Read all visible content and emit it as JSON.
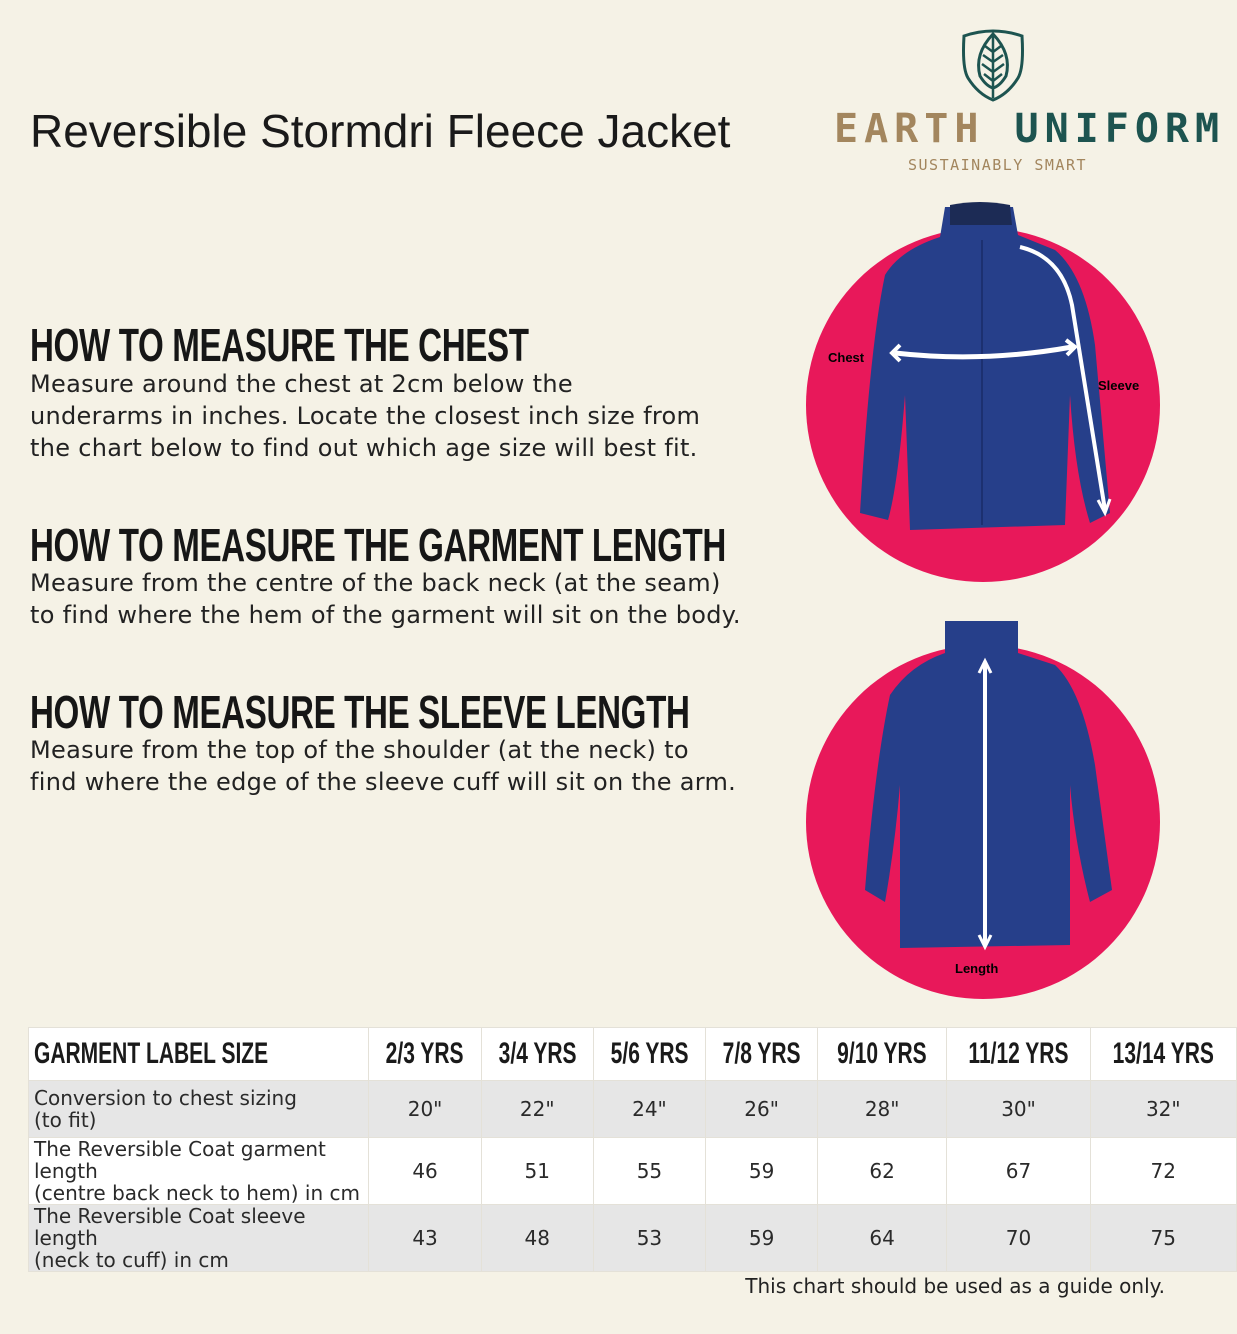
{
  "title": "Reversible Stormdri Fleece Jacket",
  "logo": {
    "word1": "EARTH",
    "word2": "UNIFORM",
    "tagline": "SUSTAINABLY SMART",
    "icon": "leaf-shield-icon",
    "colors": {
      "gold": "#a3865e",
      "teal": "#1d5450"
    }
  },
  "sections": [
    {
      "heading": "HOW TO MEASURE THE CHEST",
      "lines": [
        "Measure around the chest at 2cm below the",
        "underarms in inches. Locate the closest inch size from",
        "the chart below to find out which age size will best fit."
      ]
    },
    {
      "heading": "HOW TO MEASURE THE GARMENT LENGTH",
      "lines": [
        "Measure from the centre of the back neck (at the seam)",
        "to find where the hem of the garment will sit on the body."
      ]
    },
    {
      "heading": "HOW TO MEASURE THE SLEEVE LENGTH",
      "lines": [
        "Measure from the top of the shoulder (at the neck) to",
        "find where the edge of the sleeve cuff will sit on the arm."
      ]
    }
  ],
  "diagrams": {
    "front": {
      "chest": "Chest",
      "sleeve": "Sleeve"
    },
    "back": {
      "length": "Length"
    },
    "circle_color": "#e8185a",
    "jacket_color": "#263f8a"
  },
  "table": {
    "header": [
      "GARMENT LABEL SIZE",
      "2/3 YRS",
      "3/4 YRS",
      "5/6 YRS",
      "7/8 YRS",
      "9/10 YRS",
      "11/12 YRS",
      "13/14 YRS"
    ],
    "rows": [
      {
        "label": [
          "Conversion to chest sizing",
          "(to fit)"
        ],
        "values": [
          "20\"",
          "22\"",
          "24\"",
          "26\"",
          "28\"",
          "30\"",
          "32\""
        ]
      },
      {
        "label": [
          "The Reversible Coat garment length",
          "(centre back neck to hem) in cm"
        ],
        "values": [
          "46",
          "51",
          "55",
          "59",
          "62",
          "67",
          "72"
        ]
      },
      {
        "label": [
          "The Reversible Coat sleeve length",
          "(neck to cuff) in cm"
        ],
        "values": [
          "43",
          "48",
          "53",
          "59",
          "64",
          "70",
          "75"
        ]
      }
    ]
  },
  "note": "This chart should be used as a guide only."
}
